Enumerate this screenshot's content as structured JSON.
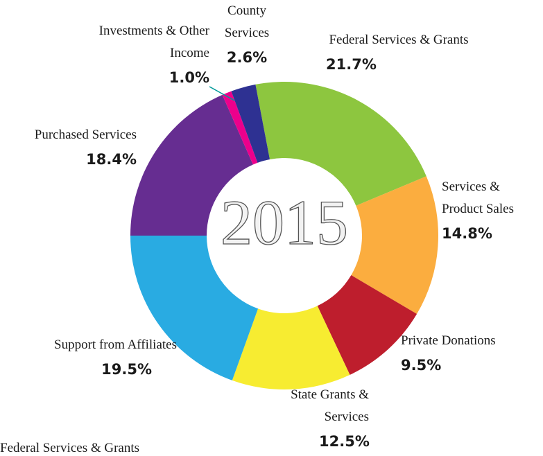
{
  "chart_data": {
    "type": "donut",
    "title": "2015",
    "categories": [
      "Federal Services & Grants",
      "Services & Product Sales",
      "Private Donations",
      "State Grants & Services",
      "Support from Affiliates",
      "Purchased Services",
      "Investments & Other Income",
      "County Services"
    ],
    "values": [
      21.7,
      14.8,
      9.5,
      12.5,
      19.5,
      18.4,
      1.0,
      2.6
    ],
    "value_labels": [
      "21.7%",
      "14.8%",
      "9.5%",
      "12.5%",
      "19.5%",
      "18.4%",
      "1.0%",
      "2.6%"
    ],
    "colors": [
      "#8dc63f",
      "#fbad3f",
      "#be1e2d",
      "#f7ec31",
      "#29abe2",
      "#662d91",
      "#ec008c",
      "#2e3192"
    ]
  }
}
